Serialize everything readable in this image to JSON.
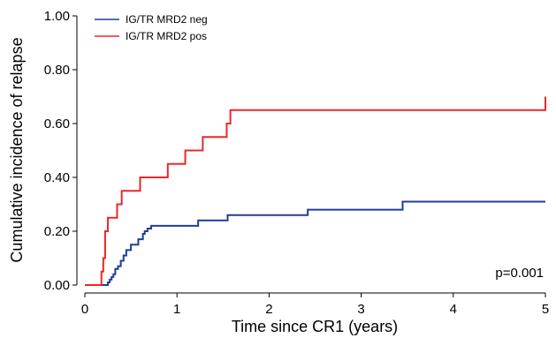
{
  "chart_data": {
    "type": "line",
    "step": true,
    "xlabel": "Time since CR1 (years)",
    "ylabel": "Cumulative incidence of relapse",
    "xlim": [
      0,
      5
    ],
    "ylim": [
      0,
      1
    ],
    "x_ticks": [
      0,
      1,
      2,
      3,
      4,
      5
    ],
    "x_tick_labels": [
      "0",
      "1",
      "2",
      "3",
      "4",
      "5"
    ],
    "y_ticks": [
      0,
      0.2,
      0.4,
      0.6,
      0.8,
      1.0
    ],
    "y_tick_labels": [
      "0.00",
      "0.20",
      "0.40",
      "0.60",
      "0.80",
      "1.00"
    ],
    "grid": false,
    "legend_position": "top-left",
    "annotation": "p=0.001",
    "series": [
      {
        "name": "IG/TR MRD2 neg",
        "color": "#1f3d99",
        "x": [
          0,
          0.25,
          0.27,
          0.29,
          0.31,
          0.33,
          0.36,
          0.39,
          0.42,
          0.45,
          0.5,
          0.58,
          0.63,
          0.65,
          0.68,
          0.72,
          1.23,
          1.55,
          2.42,
          3.45,
          5
        ],
        "y": [
          0,
          0.01,
          0.02,
          0.03,
          0.04,
          0.06,
          0.07,
          0.09,
          0.11,
          0.13,
          0.15,
          0.17,
          0.19,
          0.2,
          0.21,
          0.22,
          0.24,
          0.26,
          0.28,
          0.31,
          0.31
        ]
      },
      {
        "name": "IG/TR MRD2 pos",
        "color": "#e8282b",
        "x": [
          0,
          0.18,
          0.2,
          0.22,
          0.25,
          0.35,
          0.4,
          0.6,
          0.9,
          1.09,
          1.28,
          1.54,
          1.58,
          5
        ],
        "y": [
          0,
          0.05,
          0.1,
          0.2,
          0.25,
          0.3,
          0.35,
          0.4,
          0.45,
          0.5,
          0.55,
          0.6,
          0.65,
          0.7
        ]
      }
    ]
  }
}
